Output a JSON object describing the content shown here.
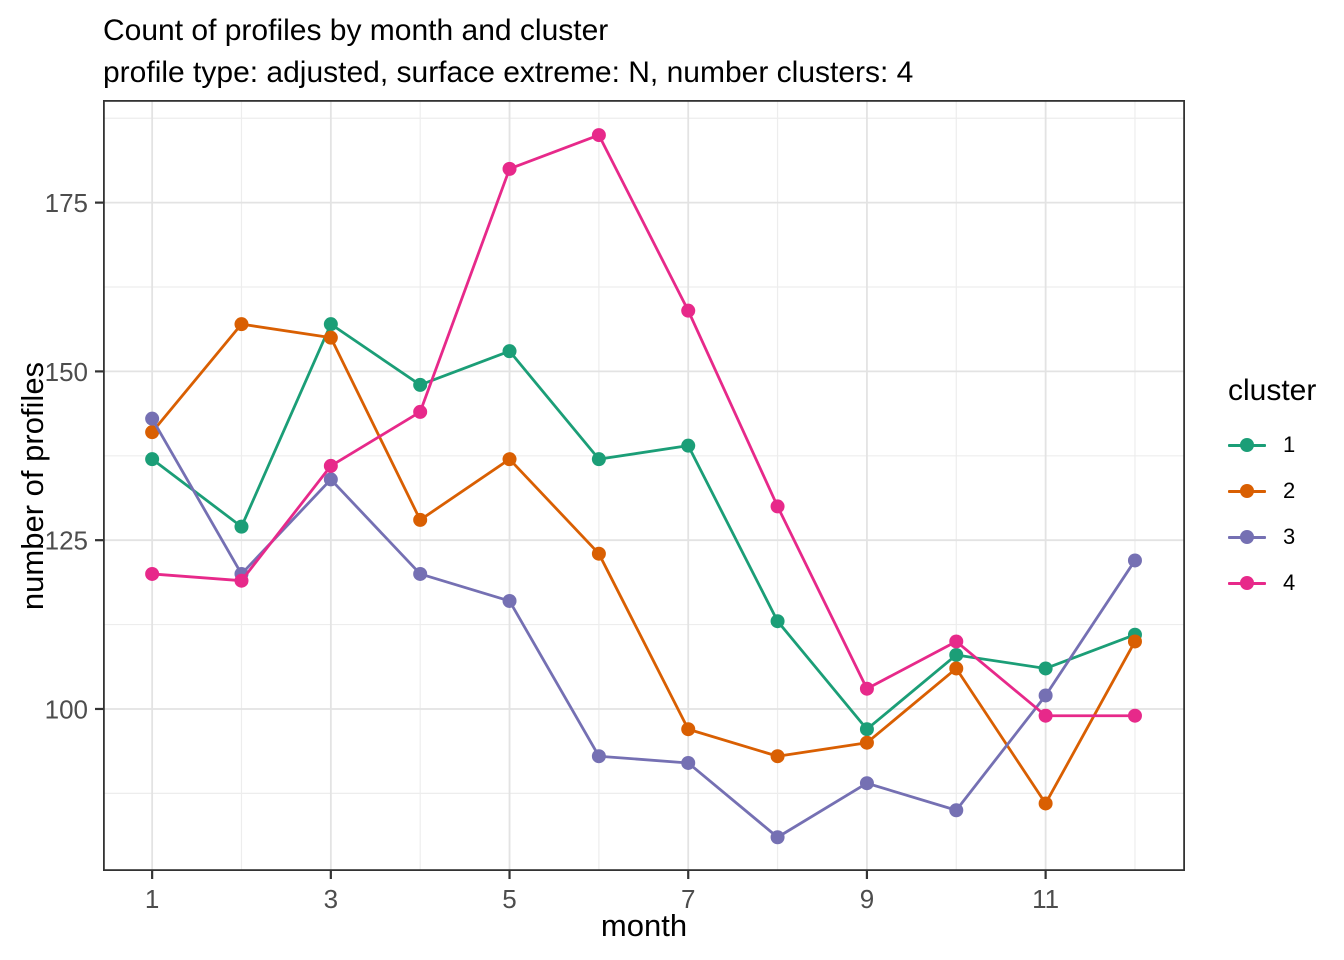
{
  "chart_data": {
    "type": "line",
    "title": "Count of profiles by month and cluster",
    "subtitle": "profile type: adjusted, surface extreme: N, number clusters: 4",
    "xlabel": "month",
    "ylabel": "number of profiles",
    "x": [
      1,
      2,
      3,
      4,
      5,
      6,
      7,
      8,
      9,
      10,
      11,
      12
    ],
    "series": [
      {
        "name": "1",
        "color": "#1B9E77",
        "values": [
          137,
          127,
          157,
          148,
          153,
          137,
          139,
          113,
          97,
          108,
          106,
          111
        ]
      },
      {
        "name": "2",
        "color": "#D95F02",
        "values": [
          141,
          157,
          155,
          128,
          137,
          123,
          97,
          93,
          95,
          106,
          86,
          110
        ]
      },
      {
        "name": "3",
        "color": "#7570B3",
        "values": [
          143,
          120,
          134,
          120,
          116,
          93,
          92,
          81,
          89,
          85,
          102,
          122
        ]
      },
      {
        "name": "4",
        "color": "#E7298A",
        "values": [
          120,
          119,
          136,
          144,
          180,
          185,
          159,
          130,
          103,
          110,
          99,
          99
        ]
      }
    ],
    "legend": {
      "title": "cluster",
      "position": "right"
    },
    "axes": {
      "x": {
        "ticks": [
          1,
          3,
          5,
          7,
          9,
          11
        ],
        "minor": [
          2,
          4,
          6,
          8,
          10,
          12
        ],
        "domain": [
          0.45,
          12.56
        ]
      },
      "y": {
        "ticks": [
          100,
          125,
          150,
          175
        ],
        "minor": [
          87.5,
          112.5,
          137.5,
          162.5,
          187.5
        ],
        "domain": [
          76.0,
          190.2
        ]
      }
    },
    "grid": true,
    "style": {
      "grid_major": "#E3E3E3",
      "grid_minor": "#EDEDED",
      "panel_border": "#333333",
      "tick": "#333333",
      "tick_label": "#4D4D4D",
      "background": "#FFFFFF",
      "point_radius": 7,
      "line_width": 2.8
    }
  }
}
